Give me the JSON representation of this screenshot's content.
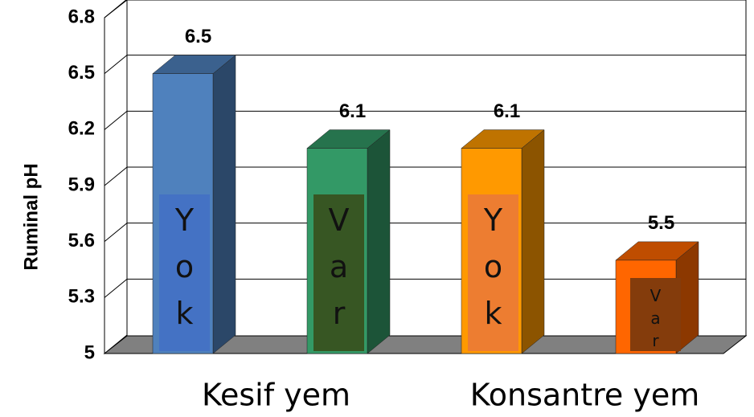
{
  "chart_data": {
    "type": "bar3d",
    "y_label": "Ruminal pH",
    "categories": [
      "Yok",
      "Var",
      "Yok",
      "Var"
    ],
    "groups": [
      "Kesif yem",
      "Konsantre yem"
    ],
    "values": [
      6.5,
      6.1,
      6.1,
      5.5
    ],
    "colors": [
      "#4f81bd",
      "#339966",
      "#ff9900",
      "#ff6600"
    ],
    "label_box_colors": [
      "#4472c4",
      "#375623",
      "#ed7d31",
      "#843c0c"
    ],
    "ylim": [
      5,
      6.8
    ],
    "yticks": [
      5,
      5.3,
      5.6,
      5.9,
      6.2,
      6.5,
      6.8
    ],
    "grid": true
  }
}
